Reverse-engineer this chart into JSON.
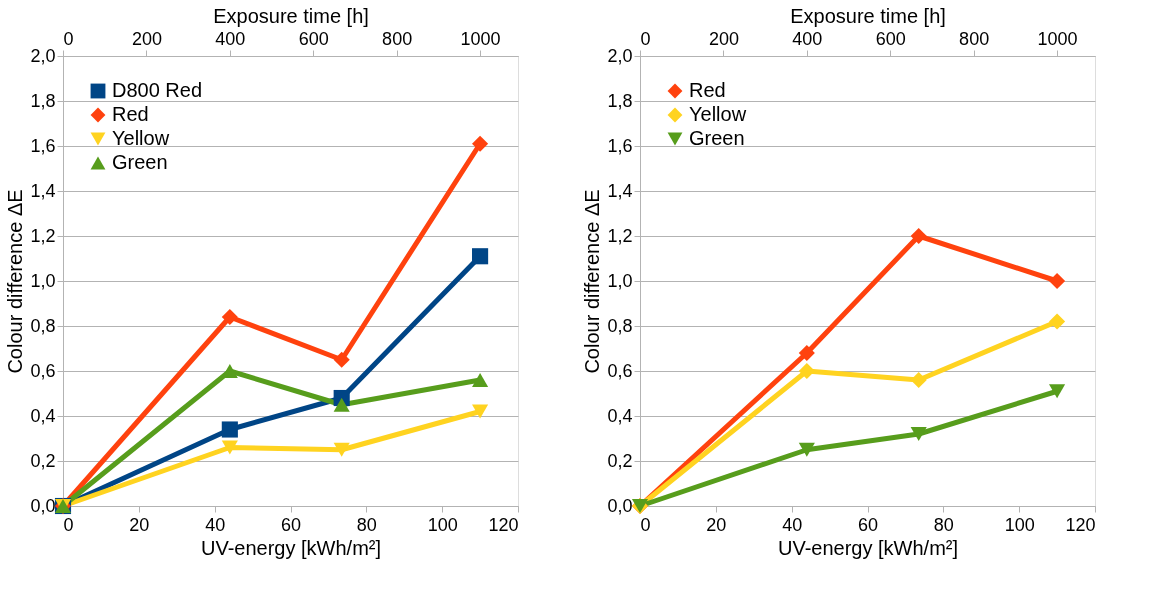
{
  "chart_data": [
    {
      "type": "line",
      "xlabel": "UV-energy [kWh/m²]",
      "ylabel": "Colour difference ΔE",
      "x2label": "Exposure time [h]",
      "x": [
        0,
        44,
        73.5,
        110
      ],
      "series": [
        {
          "name": "D800 Red",
          "color": "#004586",
          "marker": "square",
          "values": [
            0,
            0.34,
            0.48,
            1.11
          ]
        },
        {
          "name": "Red",
          "color": "#ff420e",
          "marker": "diamond",
          "values": [
            0,
            0.84,
            0.65,
            1.61
          ]
        },
        {
          "name": "Yellow",
          "color": "#ffd320",
          "marker": "triangle-down",
          "values": [
            0,
            0.26,
            0.25,
            0.42
          ]
        },
        {
          "name": "Green",
          "color": "#579d1c",
          "marker": "triangle",
          "values": [
            0,
            0.6,
            0.45,
            0.56
          ]
        }
      ],
      "xlim": [
        0,
        120
      ],
      "xticks": [
        0,
        20,
        40,
        60,
        80,
        100,
        120
      ],
      "x2lim": [
        0,
        1091
      ],
      "x2ticks": [
        0,
        200,
        400,
        600,
        800,
        1000
      ],
      "ylim": [
        0,
        2
      ],
      "yticks": [
        {
          "value": 0,
          "label": "0,0"
        },
        {
          "value": 0.2,
          "label": "0,2"
        },
        {
          "value": 0.4,
          "label": "0,4"
        },
        {
          "value": 0.6,
          "label": "0,6"
        },
        {
          "value": 0.8,
          "label": "0,8"
        },
        {
          "value": 1,
          "label": "1,0"
        },
        {
          "value": 1.2,
          "label": "1,2"
        },
        {
          "value": 1.4,
          "label": "1,4"
        },
        {
          "value": 1.6,
          "label": "1,6"
        },
        {
          "value": 1.8,
          "label": "1,8"
        },
        {
          "value": 2,
          "label": "2,0"
        }
      ],
      "grid": "y",
      "legend": "top left",
      "line_style": "solid"
    },
    {
      "type": "line",
      "xlabel": "UV-energy [kWh/m²]",
      "ylabel": "Colour difference ΔE",
      "x2label": "Exposure time [h]",
      "x": [
        0,
        44,
        73.5,
        110
      ],
      "series": [
        {
          "name": "Red",
          "color": "#ff420e",
          "marker": "diamond",
          "values": [
            0,
            0.68,
            1.2,
            1.0
          ]
        },
        {
          "name": "Yellow",
          "color": "#ffd320",
          "marker": "diamond",
          "values": [
            0,
            0.6,
            0.56,
            0.82
          ]
        },
        {
          "name": "Green",
          "color": "#579d1c",
          "marker": "triangle-down",
          "values": [
            0,
            0.25,
            0.32,
            0.51
          ]
        }
      ],
      "xlim": [
        0,
        120
      ],
      "xticks": [
        0,
        20,
        40,
        60,
        80,
        100,
        120
      ],
      "x2lim": [
        0,
        1091
      ],
      "x2ticks": [
        0,
        200,
        400,
        600,
        800,
        1000
      ],
      "ylim": [
        0,
        2
      ],
      "yticks": [
        {
          "value": 0,
          "label": "0,0"
        },
        {
          "value": 0.2,
          "label": "0,2"
        },
        {
          "value": 0.4,
          "label": "0,4"
        },
        {
          "value": 0.6,
          "label": "0,6"
        },
        {
          "value": 0.8,
          "label": "0,8"
        },
        {
          "value": 1,
          "label": "1,0"
        },
        {
          "value": 1.2,
          "label": "1,2"
        },
        {
          "value": 1.4,
          "label": "1,4"
        },
        {
          "value": 1.6,
          "label": "1,6"
        },
        {
          "value": 1.8,
          "label": "1,8"
        },
        {
          "value": 2,
          "label": "2,0"
        }
      ],
      "grid": "y",
      "legend": "top left",
      "line_style": "solid"
    }
  ]
}
